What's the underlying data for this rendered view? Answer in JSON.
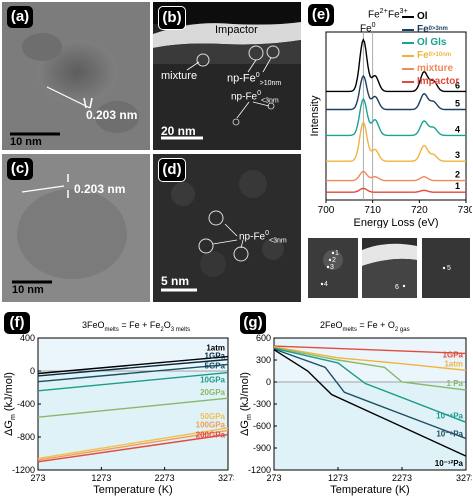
{
  "panels": {
    "a": {
      "label": "(a)",
      "measure": "0.203 nm",
      "scale": "10 nm"
    },
    "b": {
      "label": "(b)",
      "impactor": "Impactor",
      "mixture": "mixture",
      "np_large": "np-Fe",
      "np_large_sup": "0",
      "np_large_sub": ">10nm",
      "np_small": "np-Fe",
      "np_small_sup": "0",
      "np_small_sub": "<3nm",
      "scale": "20 nm"
    },
    "c": {
      "label": "(c)",
      "measure": "0.203 nm",
      "scale": "10 nm"
    },
    "d": {
      "label": "(d)",
      "np": "np-Fe",
      "np_sup": "0",
      "np_sub": "<3nm",
      "scale": "5 nm"
    },
    "e": {
      "label": "(e)",
      "peak_fe2": "Fe",
      "peak_fe2_sup": "2+",
      "peak_fe0": "Fe",
      "peak_fe0_sup": "0",
      "peak_fe3": "Fe",
      "peak_fe3_sup": "3+"
    },
    "f": {
      "label": "(f)",
      "equation": "3FeO",
      "equation_sub": "melts",
      "equation_rest": " = Fe + Fe",
      "equation_sub2": "2",
      "equation_o": "O",
      "equation_sub3": "3 melts"
    },
    "g": {
      "label": "(g)",
      "equation": "2FeO",
      "equation_sub": "melts",
      "equation_rest": " = Fe + O",
      "equation_sub2": "2 gas"
    }
  },
  "chart_data": [
    {
      "type": "line",
      "panel": "e",
      "xlabel": "Energy Loss (eV)",
      "ylabel": "Intensity",
      "xlim": [
        700,
        730
      ],
      "x_ticks": [
        700,
        710,
        720,
        730
      ],
      "legend_position": "top-right",
      "markers": [
        708,
        710
      ],
      "series": [
        {
          "name": "Ol",
          "legend": "Ol",
          "sub": "",
          "sup": "",
          "index_label": "6",
          "color": "#000000",
          "offset": 8.4,
          "peaks": [
            [
              708,
              4.0
            ],
            [
              710.5,
              1.2
            ],
            [
              721,
              1.5
            ],
            [
              723,
              0.8
            ]
          ]
        },
        {
          "name": "Fe0 >3nm",
          "legend": "Fe",
          "sup": "0",
          "sub": ">3nm",
          "index_label": "5",
          "color": "#1d3f5e",
          "offset": 7.0,
          "peaks": [
            [
              708,
              2.6
            ],
            [
              710.5,
              1.0
            ],
            [
              721,
              1.2
            ],
            [
              723,
              0.6
            ]
          ]
        },
        {
          "name": "Ol Gls",
          "legend": "Ol Gls",
          "sub": "",
          "sup": "",
          "index_label": "4",
          "color": "#19a393",
          "offset": 5.0,
          "peaks": [
            [
              708,
              2.8
            ],
            [
              710.5,
              1.2
            ],
            [
              721,
              1.1
            ],
            [
              723,
              0.6
            ]
          ]
        },
        {
          "name": "Fe0 >10nm",
          "legend": "Fe",
          "sup": "0",
          "sub": ">10nm",
          "index_label": "3",
          "color": "#f2b33d",
          "offset": 3.0,
          "peaks": [
            [
              708,
              3.0
            ],
            [
              710.5,
              0.9
            ],
            [
              721,
              1.2
            ],
            [
              723,
              0.5
            ]
          ]
        },
        {
          "name": "mixture",
          "legend": "mixture",
          "sub": "",
          "sup": "",
          "index_label": "2",
          "color": "#f08a5b",
          "offset": 1.5,
          "peaks": [
            [
              708,
              0.7
            ],
            [
              710.5,
              0.3
            ],
            [
              721,
              0.3
            ]
          ]
        },
        {
          "name": "Impactor",
          "legend": "Impactor",
          "sub": "",
          "sup": "",
          "index_label": "1",
          "color": "#e04a3a",
          "offset": 0.6,
          "peaks": [
            [
              708,
              0.3
            ],
            [
              721,
              0.15
            ]
          ]
        }
      ]
    },
    {
      "type": "line",
      "panel": "f",
      "xlabel": "Temperature (K)",
      "ylabel": "ΔG",
      "ylabel_sub": "m",
      "ylabel_rest": " (kJ/mol)",
      "xlim": [
        273,
        3273
      ],
      "ylim": [
        -1200,
        400
      ],
      "x_ticks": [
        273,
        1273,
        2273,
        3273
      ],
      "y_ticks": [
        400,
        0,
        -400,
        -800,
        -1200
      ],
      "series": [
        {
          "name": "1atm",
          "color": "#000000",
          "values": [
            [
              273,
              -30
            ],
            [
              3273,
              175
            ]
          ]
        },
        {
          "name": "1GPa",
          "color": "#0a2a3c",
          "values": [
            [
              273,
              -60
            ],
            [
              3273,
              140
            ]
          ]
        },
        {
          "name": "5GPa",
          "color": "#1d4f63",
          "values": [
            [
              273,
              -130
            ],
            [
              3273,
              80
            ]
          ]
        },
        {
          "name": "10GPa",
          "color": "#1e9b8a",
          "values": [
            [
              273,
              -240
            ],
            [
              3273,
              -20
            ]
          ]
        },
        {
          "name": "20GPa",
          "color": "#8ab86a",
          "values": [
            [
              273,
              -560
            ],
            [
              3273,
              -330
            ]
          ]
        },
        {
          "name": "50GPa",
          "color": "#f2c14e",
          "values": [
            [
              273,
              -1060
            ],
            [
              3273,
              -690
            ]
          ]
        },
        {
          "name": "100GPa",
          "color": "#f39c55",
          "values": [
            [
              273,
              -1080
            ],
            [
              3273,
              -720
            ]
          ]
        },
        {
          "name": "200GPa",
          "color": "#e34b3c",
          "values": [
            [
              273,
              -1100
            ],
            [
              3273,
              -770
            ]
          ]
        }
      ]
    },
    {
      "type": "line",
      "panel": "g",
      "xlabel": "Temperature (K)",
      "ylabel": "ΔG",
      "ylabel_sub": "m",
      "ylabel_rest": " (kJ/mol)",
      "xlim": [
        273,
        3273
      ],
      "ylim": [
        -1200,
        600
      ],
      "x_ticks": [
        273,
        1273,
        2273,
        3273
      ],
      "y_ticks": [
        600,
        300,
        0,
        -300,
        -600,
        -900,
        -1200
      ],
      "series": [
        {
          "name": "1GPa",
          "color": "#e34b3c",
          "values": [
            [
              273,
              490
            ],
            [
              3273,
              390
            ]
          ]
        },
        {
          "name": "1atm",
          "color": "#f2b33d",
          "values": [
            [
              273,
              480
            ],
            [
              1273,
              330
            ],
            [
              2273,
              250
            ],
            [
              3273,
              160
            ]
          ]
        },
        {
          "name": "1 Pa",
          "color": "#8ab86a",
          "values": [
            [
              273,
              470
            ],
            [
              1273,
              300
            ],
            [
              2000,
              200
            ],
            [
              2273,
              0
            ],
            [
              3273,
              -110
            ]
          ]
        },
        {
          "name": "10⁻⁴Pa",
          "color": "#1e9b8a",
          "values": [
            [
              273,
              460
            ],
            [
              1273,
              260
            ],
            [
              1500,
              110
            ],
            [
              1700,
              -20
            ],
            [
              3273,
              -550
            ]
          ]
        },
        {
          "name": "10⁻⁸Pa",
          "color": "#1d4f63",
          "values": [
            [
              273,
              450
            ],
            [
              1073,
              200
            ],
            [
              1373,
              -140
            ],
            [
              3273,
              -770
            ]
          ]
        },
        {
          "name": "10⁻¹²Pa",
          "color": "#000000",
          "values": [
            [
              273,
              440
            ],
            [
              800,
              150
            ],
            [
              1173,
              -170
            ],
            [
              3273,
              -1010
            ]
          ]
        }
      ]
    }
  ]
}
